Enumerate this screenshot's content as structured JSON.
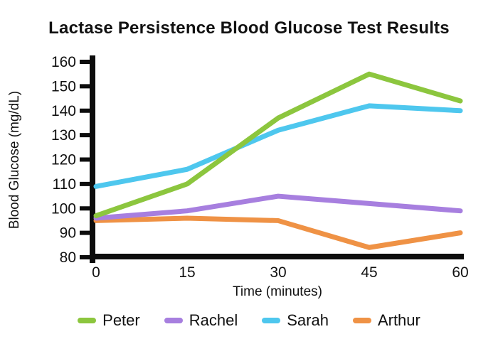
{
  "title": "Lactase Persistence Blood Glucose Test Results",
  "chart_data": {
    "type": "line",
    "x": [
      0,
      15,
      30,
      45,
      60
    ],
    "xlabel": "Time (minutes)",
    "ylabel": "Blood Glucose (mg/dL)",
    "ylim": [
      80,
      160
    ],
    "ytick_step": 10,
    "yticks": [
      80,
      90,
      100,
      110,
      120,
      130,
      140,
      150,
      160
    ],
    "grid": false,
    "legend_position": "bottom",
    "axis_color": "#0d0d0d",
    "series": [
      {
        "name": "Peter",
        "color": "#8CC63E",
        "values": [
          97,
          110,
          137,
          155,
          144
        ]
      },
      {
        "name": "Rachel",
        "color": "#A77FDF",
        "values": [
          96,
          99,
          105,
          102,
          99
        ]
      },
      {
        "name": "Sarah",
        "color": "#4EC7EE",
        "values": [
          109,
          116,
          132,
          142,
          140
        ]
      },
      {
        "name": "Arthur",
        "color": "#EF9245",
        "values": [
          95,
          96,
          95,
          84,
          90
        ]
      }
    ]
  }
}
